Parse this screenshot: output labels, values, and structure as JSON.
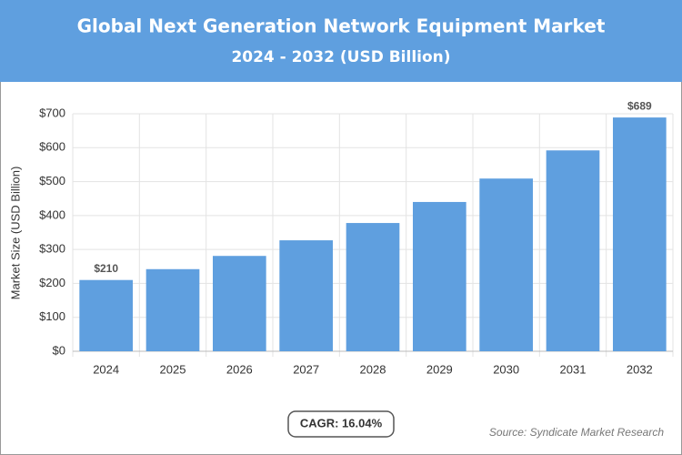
{
  "chart_data": {
    "type": "bar",
    "title": "Global Next Generation Network Equipment Market",
    "subtitle": "2024 - 2032 (USD Billion)",
    "y_label": "Market Size (USD Billion)",
    "categories": [
      "2024",
      "2025",
      "2026",
      "2027",
      "2028",
      "2029",
      "2030",
      "2031",
      "2032"
    ],
    "values": [
      210,
      242,
      281,
      327,
      378,
      440,
      509,
      592,
      689
    ],
    "value_labels": [
      "$210",
      null,
      null,
      null,
      null,
      null,
      null,
      null,
      "$689"
    ],
    "color": "#5f9fdf",
    "ylim": [
      0,
      700
    ],
    "yticks": [
      {
        "value": 0,
        "label": "$0"
      },
      {
        "value": 100,
        "label": "$100"
      },
      {
        "value": 200,
        "label": "$200"
      },
      {
        "value": 300,
        "label": "$300"
      },
      {
        "value": 400,
        "label": "$400"
      },
      {
        "value": 500,
        "label": "$500"
      },
      {
        "value": 600,
        "label": "$600"
      },
      {
        "value": 700,
        "label": "$700"
      }
    ],
    "grid": true,
    "cagr": "CAGR: 16.04%",
    "source": "Source: Syndicate Market Research"
  }
}
